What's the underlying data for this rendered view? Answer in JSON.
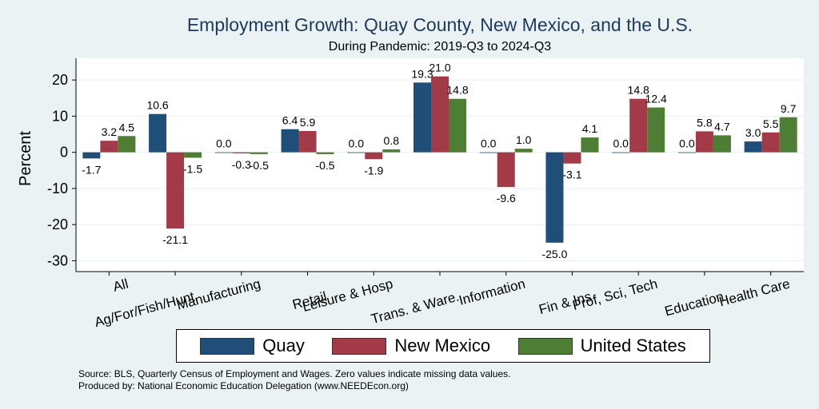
{
  "chart_data": {
    "type": "bar",
    "title": "Employment Growth: Quay County, New Mexico, and the U.S.",
    "subtitle": "During Pandemic: 2019-Q3 to 2024-Q3",
    "ylabel": "Percent",
    "xlabel": "",
    "ylim": [
      -33,
      26
    ],
    "yticks": [
      20,
      10,
      0,
      -10,
      -20,
      -30
    ],
    "grid": true,
    "categories": [
      "All",
      "Ag/For/Fish/Hunt",
      "Manufacturing",
      "Retail",
      "Leisure & Hosp",
      "Trans. & Ware.",
      "Information",
      "Fin & Ins",
      "Prof, Sci, Tech",
      "Education",
      "Health Care"
    ],
    "series": [
      {
        "name": "Quay",
        "color": "#1f4e79",
        "values": [
          -1.7,
          10.6,
          0.0,
          6.4,
          0.0,
          19.3,
          0.0,
          -25.0,
          0.0,
          0.0,
          3.0
        ]
      },
      {
        "name": "New Mexico",
        "color": "#a23b47",
        "values": [
          3.2,
          -21.1,
          -0.3,
          5.9,
          -1.9,
          21.0,
          -9.6,
          -3.1,
          14.8,
          5.8,
          5.5
        ]
      },
      {
        "name": "United States",
        "color": "#4e7d34",
        "values": [
          4.5,
          -1.5,
          -0.5,
          -0.5,
          0.8,
          14.8,
          1.0,
          4.1,
          12.4,
          4.7,
          9.7
        ]
      }
    ],
    "legend_position": "bottom"
  },
  "footer": {
    "source": "Source: BLS, Quarterly Census of Employment and Wages. Zero values indicate missing data values.",
    "produced_by": "Produced by: National Economic Education Delegation (www.NEEDEcon.org)"
  }
}
